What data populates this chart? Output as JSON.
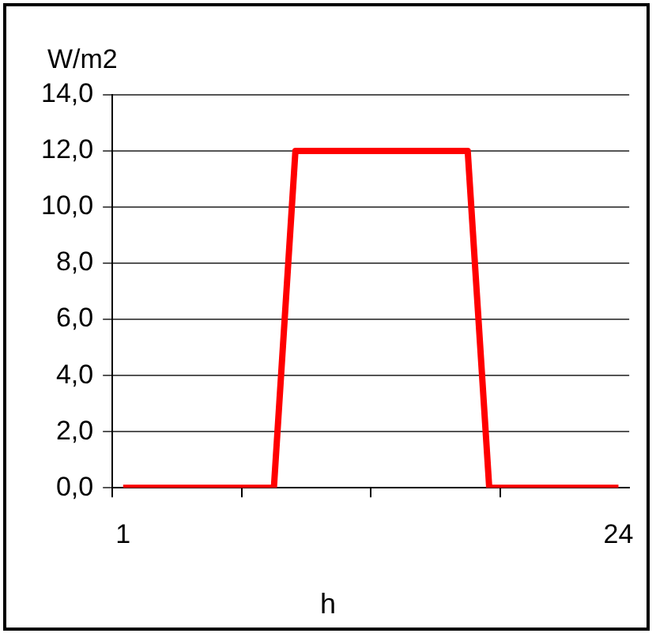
{
  "chart_data": {
    "type": "line",
    "xlabel": "h",
    "ylabel": "W/m2",
    "categories": [
      "1",
      null,
      null,
      null,
      null,
      null,
      null,
      null,
      null,
      null,
      null,
      null,
      null,
      null,
      null,
      null,
      null,
      null,
      null,
      null,
      null,
      null,
      null,
      "24"
    ],
    "series": [
      {
        "color": "#ff0000",
        "values": [
          0,
          0,
          0,
          0,
          0,
          0,
          0,
          0,
          12,
          12,
          12,
          12,
          12,
          12,
          12,
          12,
          12,
          0,
          0,
          0,
          0,
          0,
          0,
          0
        ]
      }
    ],
    "ylim": [
      0,
      14
    ],
    "yticks": [
      {
        "value": 0,
        "label": "0,0"
      },
      {
        "value": 2,
        "label": "2,0"
      },
      {
        "value": 4,
        "label": "4,0"
      },
      {
        "value": 6,
        "label": "6,0"
      },
      {
        "value": 8,
        "label": "8,0"
      },
      {
        "value": 10,
        "label": "10,0"
      },
      {
        "value": 12,
        "label": "12,0"
      },
      {
        "value": 14,
        "label": "14,0"
      }
    ],
    "grid": "y",
    "legend": false,
    "marker": "none",
    "line_style": "solid"
  }
}
